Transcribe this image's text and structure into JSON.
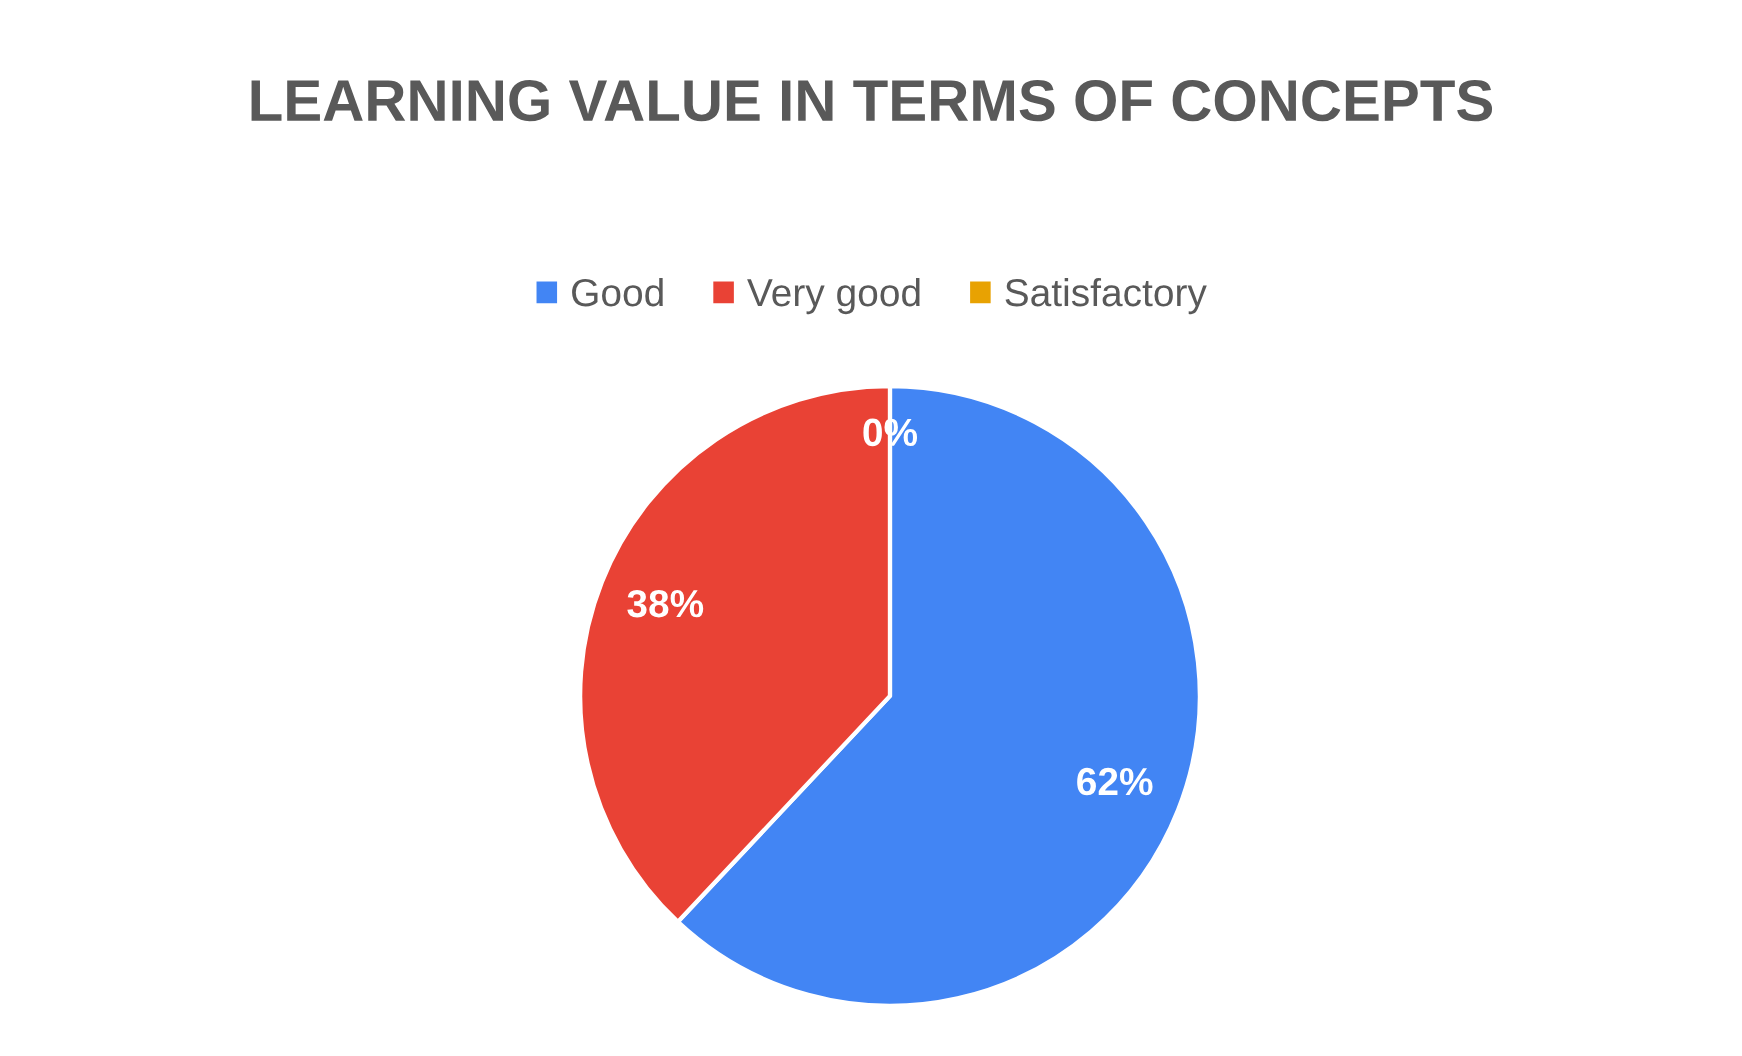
{
  "chart_data": {
    "type": "pie",
    "title": "LEARNING VALUE IN TERMS OF CONCEPTS",
    "categories": [
      "Good",
      "Very good",
      "Satisfactory"
    ],
    "values": [
      62,
      38,
      0
    ],
    "colors": [
      "#4285f4",
      "#e94235",
      "#e8a202"
    ],
    "value_labels": [
      "62%",
      "38%",
      "0%"
    ],
    "legend": "top"
  }
}
